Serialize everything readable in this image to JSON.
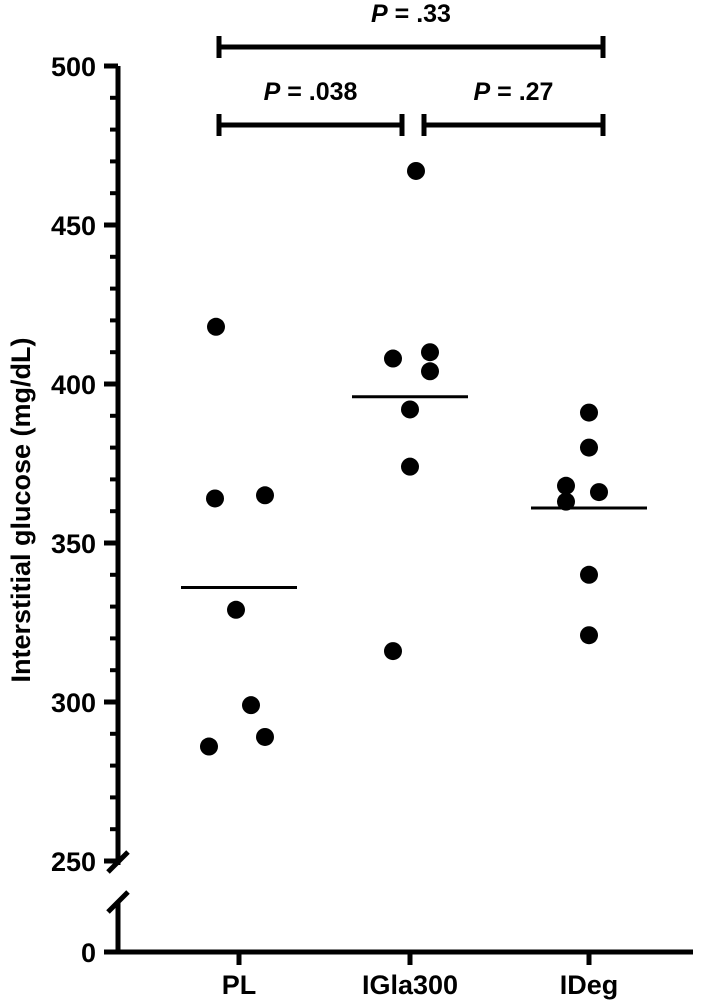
{
  "chart_data": {
    "type": "scatter",
    "ylabel": "Interstitial glucose (mg/dL)",
    "xlabel": "",
    "categories": [
      "PL",
      "IGla300",
      "IDeg"
    ],
    "y_ticks_upper": [
      250,
      300,
      350,
      400,
      450,
      500
    ],
    "y_ticks_lower": [
      0
    ],
    "y_axis_break": [
      0,
      250
    ],
    "ylim": [
      0,
      500
    ],
    "grid": false,
    "series": [
      {
        "category": "PL",
        "points": [
          {
            "dx": -0.23,
            "y": 418
          },
          {
            "dx": -0.24,
            "y": 364
          },
          {
            "dx": 0.26,
            "y": 365
          },
          {
            "dx": -0.03,
            "y": 329
          },
          {
            "dx": 0.12,
            "y": 299
          },
          {
            "dx": -0.3,
            "y": 286
          },
          {
            "dx": 0.26,
            "y": 289
          }
        ],
        "mean": 336
      },
      {
        "category": "IGla300",
        "points": [
          {
            "dx": 0.06,
            "y": 467
          },
          {
            "dx": -0.17,
            "y": 408
          },
          {
            "dx": 0.2,
            "y": 410
          },
          {
            "dx": 0.2,
            "y": 404
          },
          {
            "dx": 0.0,
            "y": 392
          },
          {
            "dx": 0.0,
            "y": 374
          },
          {
            "dx": -0.17,
            "y": 316
          }
        ],
        "mean": 396
      },
      {
        "category": "IDeg",
        "points": [
          {
            "dx": 0.0,
            "y": 391
          },
          {
            "dx": 0.0,
            "y": 380
          },
          {
            "dx": -0.23,
            "y": 368
          },
          {
            "dx": -0.23,
            "y": 363
          },
          {
            "dx": 0.1,
            "y": 366
          },
          {
            "dx": 0.0,
            "y": 340
          },
          {
            "dx": -0.0,
            "y": 321
          }
        ],
        "mean": 361
      }
    ],
    "annotations": [
      {
        "text": "P = .33",
        "from": "PL",
        "to": "IDeg",
        "level": 2
      },
      {
        "text": "P = .038",
        "from": "PL",
        "to": "IGla300",
        "level": 1
      },
      {
        "text": "P = .27",
        "from": "IGla300",
        "to": "IDeg",
        "level": 1
      }
    ]
  }
}
